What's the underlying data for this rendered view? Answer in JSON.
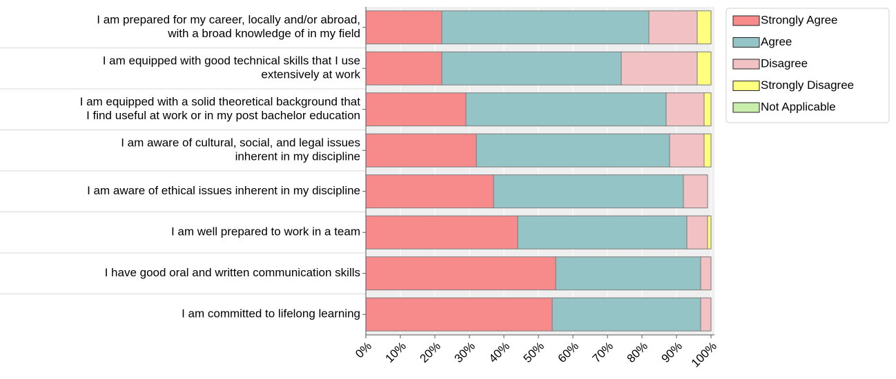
{
  "chart_data": {
    "type": "stacked-bar-horizontal",
    "categories": [
      "I am prepared for my career, locally and/or abroad,\nwith a broad knowledge of in my field",
      "I am equipped with good technical skills that I use\nextensively at work",
      "I am equipped with a solid theoretical background that\nI find useful at work or in my post bachelor education",
      "I am aware of cultural, social, and legal issues\ninherent  in my discipline",
      "I am aware of ethical issues inherent in my discipline",
      "I am well prepared to work in a team",
      "I have good oral and written communication skills",
      "I am committed to lifelong learning"
    ],
    "series": [
      {
        "name": "Strongly Agree",
        "color": "#f78b8b",
        "values": [
          22,
          22,
          29,
          32,
          37,
          44,
          55,
          54
        ]
      },
      {
        "name": "Agree",
        "color": "#94c4c5",
        "values": [
          60,
          52,
          58,
          56,
          55,
          49,
          42,
          43
        ]
      },
      {
        "name": "Disagree",
        "color": "#f1c1c4",
        "values": [
          14,
          22,
          11,
          10,
          7,
          6,
          3,
          3
        ]
      },
      {
        "name": "Strongly Disagree",
        "color": "#ffff80",
        "values": [
          4,
          4,
          2,
          2,
          0,
          1,
          0,
          0
        ]
      },
      {
        "name": "Not Applicable",
        "color": "#c9eeac",
        "values": [
          0,
          0,
          0,
          0,
          0,
          0,
          0,
          0
        ]
      }
    ],
    "xlim": [
      0,
      100
    ],
    "xticks": [
      {
        "value": 0,
        "label": "0%"
      },
      {
        "value": 10,
        "label": "10%"
      },
      {
        "value": 20,
        "label": "20%"
      },
      {
        "value": 30,
        "label": "30%"
      },
      {
        "value": 40,
        "label": "40%"
      },
      {
        "value": 50,
        "label": "50%"
      },
      {
        "value": 60,
        "label": "60%"
      },
      {
        "value": 70,
        "label": "70%"
      },
      {
        "value": 80,
        "label": "80%"
      },
      {
        "value": 90,
        "label": "90%"
      },
      {
        "value": 100,
        "label": "100%"
      }
    ],
    "grid": true,
    "legend": "top-right"
  }
}
